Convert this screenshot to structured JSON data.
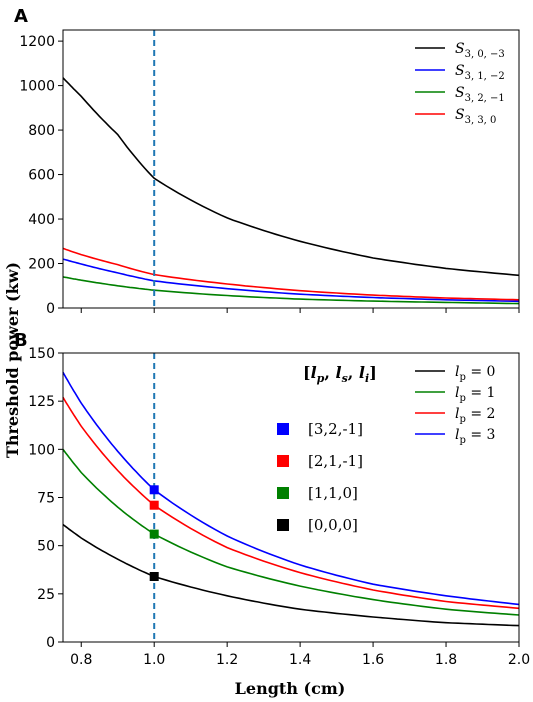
{
  "figure": {
    "ylabel": "Threshold power (kw)",
    "xlabel": "Length (cm)"
  },
  "chart_data": [
    {
      "panel": "A",
      "type": "line",
      "xlim": [
        0.75,
        2.0
      ],
      "ylim": [
        0,
        1250
      ],
      "xticks": [
        0.8,
        1.0,
        1.2,
        1.4,
        1.6,
        1.8,
        2.0
      ],
      "yticks": [
        0,
        200,
        400,
        600,
        800,
        1000,
        1200
      ],
      "ytick_labels": [
        "0",
        "200",
        "400",
        "600",
        "800",
        "1000",
        "1200"
      ],
      "show_xtick_labels": false,
      "vline": {
        "x": 1.0,
        "color": "#1f77b4",
        "style": "dashed"
      },
      "legend_position": "top-right",
      "series": [
        {
          "name": "S_{3,0,-3}",
          "base": "S",
          "sub": "3, 0, −3",
          "color": "#000000",
          "x": [
            0.75,
            0.8,
            0.9,
            1.0,
            1.2,
            1.4,
            1.6,
            1.8,
            2.0
          ],
          "y": [
            1035,
            952,
            780,
            583,
            405,
            300,
            225,
            178,
            147
          ]
        },
        {
          "name": "S_{3,1,-2}",
          "base": "S",
          "sub": "3, 1, −2",
          "color": "#0000ff",
          "x": [
            0.75,
            0.8,
            0.9,
            1.0,
            1.2,
            1.4,
            1.6,
            1.8,
            2.0
          ],
          "y": [
            220,
            198,
            158,
            122,
            87,
            62,
            47,
            37,
            30
          ]
        },
        {
          "name": "S_{3,2,-1}",
          "base": "S",
          "sub": "3, 2, −1",
          "color": "#008000",
          "x": [
            0.75,
            0.8,
            0.9,
            1.0,
            1.2,
            1.4,
            1.6,
            1.8,
            2.0
          ],
          "y": [
            140,
            125,
            100,
            80,
            56,
            40,
            31,
            25,
            20
          ]
        },
        {
          "name": "S_{3,3,0}",
          "base": "S",
          "sub": "3, 3, 0",
          "color": "#ff0000",
          "x": [
            0.75,
            0.8,
            0.9,
            1.0,
            1.2,
            1.4,
            1.6,
            1.8,
            2.0
          ],
          "y": [
            268,
            240,
            195,
            150,
            108,
            78,
            58,
            45,
            37
          ]
        }
      ]
    },
    {
      "panel": "B",
      "type": "line",
      "xlim": [
        0.75,
        2.0
      ],
      "ylim": [
        0,
        150
      ],
      "xticks": [
        0.8,
        1.0,
        1.2,
        1.4,
        1.6,
        1.8,
        2.0
      ],
      "xtick_labels": [
        "0.8",
        "1.0",
        "1.2",
        "1.4",
        "1.6",
        "1.8",
        "2.0"
      ],
      "yticks": [
        0,
        25,
        50,
        75,
        100,
        125,
        150
      ],
      "ytick_labels": [
        "0",
        "25",
        "50",
        "75",
        "100",
        "125",
        "150"
      ],
      "show_xtick_labels": true,
      "vline": {
        "x": 1.0,
        "color": "#1f77b4",
        "style": "dashed"
      },
      "legend_position": "top-right",
      "series": [
        {
          "name": "l_p = 0",
          "base": "l",
          "sub": "p",
          "eq": " = 0",
          "color": "#000000",
          "x": [
            0.75,
            0.8,
            0.9,
            1.0,
            1.2,
            1.4,
            1.6,
            1.8,
            2.0
          ],
          "y": [
            61,
            54,
            43,
            34,
            24,
            17,
            13,
            10,
            8.5
          ]
        },
        {
          "name": "l_p = 1",
          "base": "l",
          "sub": "p",
          "eq": " = 1",
          "color": "#008000",
          "x": [
            0.75,
            0.8,
            0.9,
            1.0,
            1.2,
            1.4,
            1.6,
            1.8,
            2.0
          ],
          "y": [
            100,
            88,
            70,
            56,
            39,
            29,
            22,
            17,
            14
          ]
        },
        {
          "name": "l_p = 2",
          "base": "l",
          "sub": "p",
          "eq": " = 2",
          "color": "#ff0000",
          "x": [
            0.75,
            0.8,
            0.9,
            1.0,
            1.2,
            1.4,
            1.6,
            1.8,
            2.0
          ],
          "y": [
            127,
            112,
            89,
            71,
            49,
            36,
            27,
            21,
            17.5
          ]
        },
        {
          "name": "l_p = 3",
          "base": "l",
          "sub": "p",
          "eq": " = 3",
          "color": "#0000ff",
          "x": [
            0.75,
            0.8,
            0.9,
            1.0,
            1.2,
            1.4,
            1.6,
            1.8,
            2.0
          ],
          "y": [
            140,
            124,
            99,
            79,
            55,
            40,
            30,
            24,
            19.5
          ]
        }
      ],
      "markers": [
        {
          "label": "[3,2,-1]",
          "x": 1.0,
          "y": 79,
          "color": "#0000ff"
        },
        {
          "label": "[2,1,-1]",
          "x": 1.0,
          "y": 71,
          "color": "#ff0000"
        },
        {
          "label": "[1,1,0]",
          "x": 1.0,
          "y": 56,
          "color": "#008000"
        },
        {
          "label": "[0,0,0]",
          "x": 1.0,
          "y": 34,
          "color": "#000000"
        }
      ],
      "marker_legend_title": "[l_p, l_s, l_i]"
    }
  ]
}
